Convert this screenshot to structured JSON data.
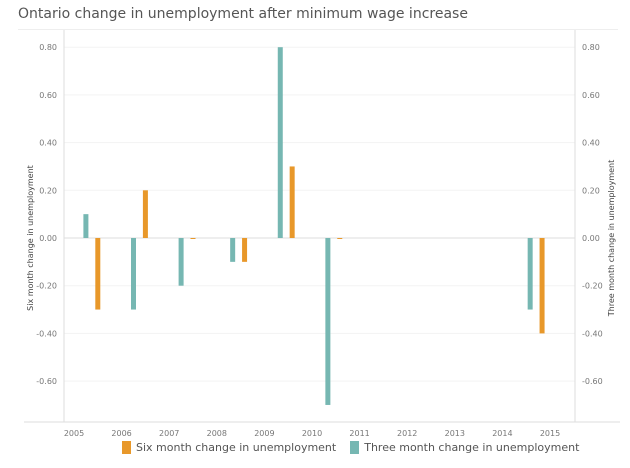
{
  "chart_data": {
    "type": "bar",
    "title": "Ontario change in unemployment after minimum wage increase",
    "ylabel_left": "Six month change in unemployment",
    "ylabel_right": "Three month change in unemployment",
    "ylim": [
      -0.76,
      0.86
    ],
    "yticks": [
      "0.80",
      "0.60",
      "0.40",
      "0.20",
      "0.00",
      "-0.20",
      "-0.40",
      "-0.60"
    ],
    "ytick_values": [
      0.8,
      0.6,
      0.4,
      0.2,
      0,
      -0.2,
      -0.4,
      -0.6
    ],
    "xticks": [
      "2005",
      "2006",
      "2007",
      "2008",
      "2009",
      "2010",
      "2011",
      "2012",
      "2013",
      "2014",
      "2015"
    ],
    "grid": true,
    "legend_position": "bottom",
    "series": [
      {
        "name": "Six month change in unemployment",
        "color": "#E8982A",
        "x": [
          "2005-07",
          "2006-07",
          "2007-07",
          "2008-08",
          "2009-08",
          "2010-08",
          "2014-11"
        ],
        "values": [
          -0.3,
          0.2,
          0.0,
          -0.1,
          0.3,
          0.0,
          -0.4
        ]
      },
      {
        "name": "Three month change in unemployment",
        "color": "#76B7B2",
        "x": [
          "2005-04",
          "2006-04",
          "2007-04",
          "2008-05",
          "2009-05",
          "2010-05",
          "2014-08"
        ],
        "values": [
          0.1,
          -0.3,
          -0.2,
          -0.1,
          0.8,
          -0.7,
          -0.3
        ]
      }
    ]
  }
}
